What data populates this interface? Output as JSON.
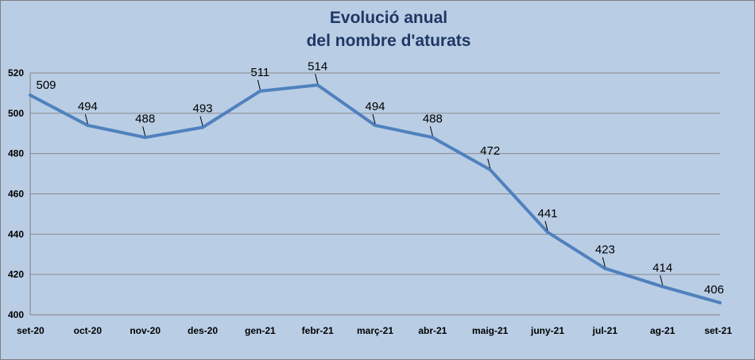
{
  "chart_data": {
    "type": "line",
    "title_lines": [
      "Evolució anual",
      "del nombre d'aturats"
    ],
    "categories": [
      "set-20",
      "oct-20",
      "nov-20",
      "des-20",
      "gen-21",
      "febr-21",
      "març-21",
      "abr-21",
      "maig-21",
      "juny-21",
      "jul-21",
      "ag-21",
      "set-21"
    ],
    "series": [
      {
        "values": [
          509,
          494,
          488,
          493,
          511,
          514,
          494,
          488,
          472,
          441,
          423,
          414,
          406
        ]
      }
    ],
    "ylim": [
      400,
      520
    ],
    "yticks": [
      400,
      420,
      440,
      460,
      480,
      500,
      520
    ],
    "grid": true,
    "legend": "none",
    "colors": {
      "line": "#4f81bd",
      "background": "#b9cde5",
      "title": "#1f3864",
      "grid": "#8c8c8c"
    }
  }
}
